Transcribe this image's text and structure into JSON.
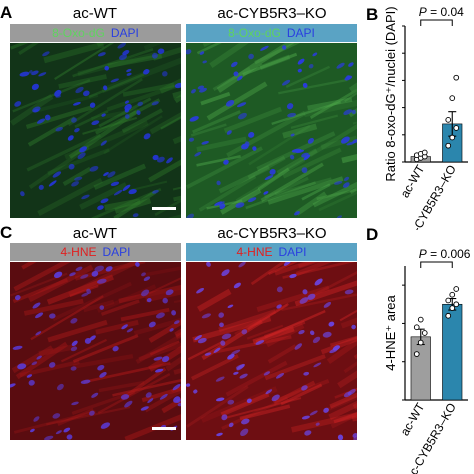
{
  "panels": {
    "A": {
      "letter": "A",
      "left_condition": "ac-WT",
      "right_condition": "ac-CYB5R3–KO",
      "stain_label": "8-Oxo-dG",
      "counterstain_label": "DAPI",
      "left_bar_color": "#9b9b9b",
      "right_bar_color": "#5aa3c4",
      "stain_color": "#5fd35f",
      "counterstain_color": "#2a3fe0"
    },
    "C": {
      "letter": "C",
      "left_condition": "ac-WT",
      "right_condition": "ac-CYB5R3–KO",
      "stain_label": "4-HNE",
      "counterstain_label": "DAPI",
      "left_bar_color": "#9b9b9b",
      "right_bar_color": "#5aa3c4",
      "stain_color": "#e02020",
      "counterstain_color": "#2a3fe0"
    }
  },
  "chart_data": [
    {
      "panel": "B",
      "type": "bar",
      "categories": [
        "ac-WT",
        "ac-CYB5R3–KO"
      ],
      "values": [
        0.04,
        0.28
      ],
      "errors": [
        0.015,
        0.09
      ],
      "points": [
        [
          0.02,
          0.03,
          0.04,
          0.05,
          0.06,
          0.07
        ],
        [
          0.12,
          0.18,
          0.25,
          0.31,
          0.47,
          0.62
        ]
      ],
      "colors": [
        "#9e9e9e",
        "#2b86ad"
      ],
      "ylabel": "Ratio 8-oxo-dG⁺/nuclei (DAPI)",
      "ylim": [
        0,
        1.0
      ],
      "yticks": [
        0,
        0.2,
        0.4,
        0.6,
        0.8,
        1.0
      ],
      "annotation": "P = 0.04"
    },
    {
      "panel": "D",
      "type": "bar",
      "categories": [
        "ac-WT",
        "ac-CYB5R3–KO"
      ],
      "values": [
        33,
        50
      ],
      "errors": [
        4,
        3
      ],
      "points": [
        [
          24,
          30,
          35,
          38,
          42
        ],
        [
          44,
          48,
          50,
          52,
          55,
          58
        ]
      ],
      "colors": [
        "#9e9e9e",
        "#2b86ad"
      ],
      "ylabel": "4-HNE⁺ area",
      "ylim": [
        0,
        70
      ],
      "yticks": [
        0,
        20,
        40,
        60
      ],
      "annotation": "P = 0.006"
    }
  ]
}
